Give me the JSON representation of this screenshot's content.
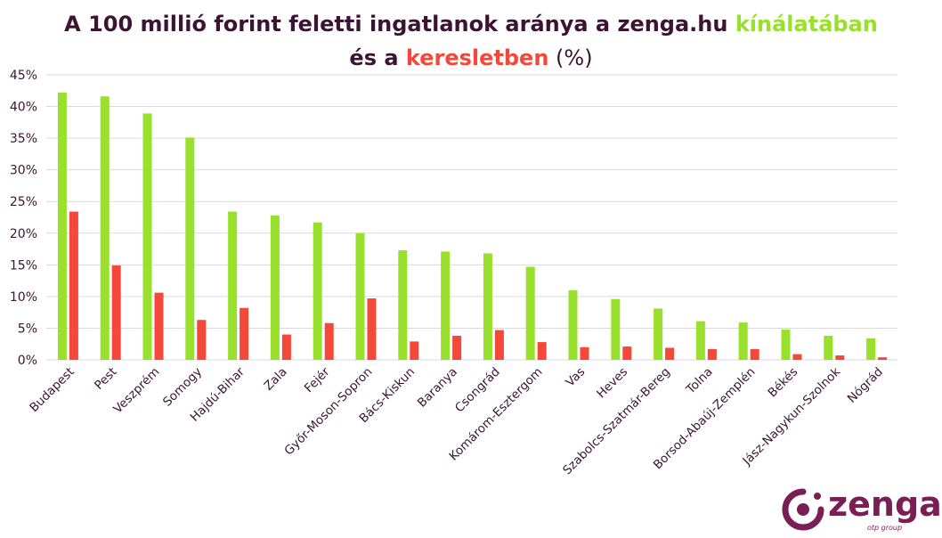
{
  "title": {
    "line1_main": "A 100 millió forint feletti ingatlanok aránya a zenga.hu ",
    "line1_accent": "kínálatában",
    "line2_prefix": "és a ",
    "line2_accent": "keresletben",
    "line2_suffix": " (%)"
  },
  "colors": {
    "title": "#3a1432",
    "supply": "#98e02c",
    "demand": "#f5473a",
    "grid": "#d9d9d9",
    "axis_text": "#3a1432",
    "logo": "#7a1f55"
  },
  "logo": {
    "name": "zenga",
    "sub": "otp group",
    "icon": "zenga-swirl-icon"
  },
  "chart_data": {
    "type": "bar",
    "categories": [
      "Budapest",
      "Pest",
      "Veszprém",
      "Somogy",
      "Hajdú-Bihar",
      "Zala",
      "Fejér",
      "Győr-Moson-Sopron",
      "Bács-Kiskun",
      "Baranya",
      "Csongrád",
      "Komárom-Esztergom",
      "Vas",
      "Heves",
      "Szabolcs-Szatmár-Bereg",
      "Tolna",
      "Borsod-Abaúj-Zemplén",
      "Békés",
      "Jász-Nagykun-Szolnok",
      "Nógrád"
    ],
    "series": [
      {
        "name": "kínálatában",
        "color": "#98e02c",
        "values": [
          42.2,
          41.6,
          38.9,
          35.1,
          23.4,
          22.8,
          21.7,
          20.0,
          17.3,
          17.1,
          16.8,
          14.7,
          11.0,
          9.6,
          8.1,
          6.1,
          5.9,
          4.8,
          3.8,
          3.4
        ]
      },
      {
        "name": "keresletben",
        "color": "#f5473a",
        "values": [
          23.4,
          14.9,
          10.6,
          6.3,
          8.2,
          4.0,
          5.8,
          9.7,
          2.9,
          3.8,
          4.7,
          2.8,
          2.0,
          2.1,
          1.9,
          1.7,
          1.7,
          0.9,
          0.7,
          0.4
        ]
      }
    ],
    "ylim": [
      0,
      45
    ],
    "yticks": [
      0,
      5,
      10,
      15,
      20,
      25,
      30,
      35,
      40,
      45
    ],
    "ytick_labels": [
      "0%",
      "5%",
      "10%",
      "15%",
      "20%",
      "25%",
      "30%",
      "35%",
      "40%",
      "45%"
    ],
    "grid": true,
    "legend": "none (title colour-coded)"
  }
}
